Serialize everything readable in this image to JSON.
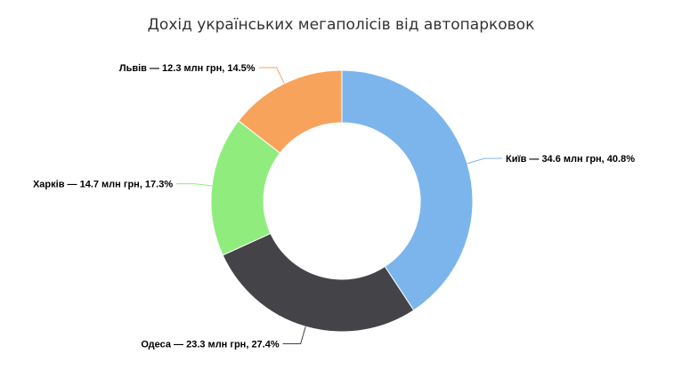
{
  "chart_data": {
    "type": "pie",
    "title": "Дохід українських мегаполісів від автопарковок",
    "categories": [
      "Київ",
      "Одеса",
      "Харків",
      "Львів"
    ],
    "values": [
      34.6,
      23.3,
      14.7,
      12.3
    ],
    "percentages": [
      40.8,
      27.4,
      17.3,
      14.5
    ],
    "unit": "млн грн",
    "data_labels": [
      "Київ — 34.6 млн грн, 40.8%",
      "Одеса — 23.3 млн грн, 27.4%",
      "Харків — 14.7 млн грн, 17.3%",
      "Львів — 12.3 млн грн, 14.5%"
    ],
    "colors": [
      "#7cb5ec",
      "#434348",
      "#90ed7d",
      "#f7a35c"
    ],
    "donut": true,
    "legend": "none"
  }
}
